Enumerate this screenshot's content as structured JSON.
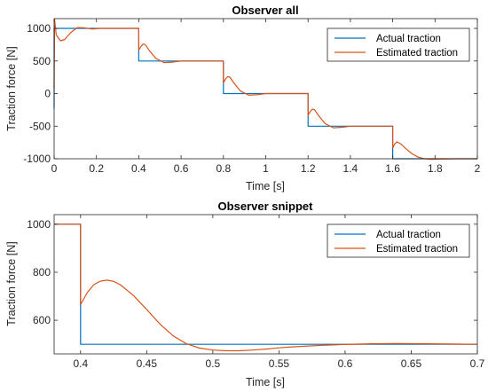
{
  "chart_data": [
    {
      "type": "line",
      "title": "Observer all",
      "xlabel": "Time [s]",
      "ylabel": "Traction force [N]",
      "xlim": [
        0,
        2
      ],
      "ylim": [
        -1000,
        1150
      ],
      "xticks": [
        "0",
        "0.2",
        "0.4",
        "0.6",
        "0.8",
        "1",
        "1.2",
        "1.4",
        "1.6",
        "1.8",
        "2"
      ],
      "yticks": [
        "-1000",
        "-500",
        "0",
        "500",
        "1000"
      ],
      "grid": false,
      "legend_position": "top-right",
      "series": [
        {
          "name": "Actual traction",
          "color": "#0072BD",
          "x": [
            0,
            0,
            0.4,
            0.4,
            0.8,
            0.8,
            1.2,
            1.2,
            1.6,
            1.6,
            2.0
          ],
          "y": [
            -230,
            1000,
            1000,
            500,
            500,
            0,
            0,
            -500,
            -500,
            -1000,
            -1000
          ]
        },
        {
          "name": "Estimated traction",
          "color": "#D95319",
          "x": [
            0,
            0.002,
            0.01,
            0.03,
            0.05,
            0.08,
            0.11,
            0.14,
            0.18,
            0.22,
            0.3,
            0.4,
            0.4,
            0.41,
            0.42,
            0.43,
            0.45,
            0.48,
            0.52,
            0.56,
            0.6,
            0.7,
            0.8,
            0.8,
            0.81,
            0.82,
            0.83,
            0.85,
            0.88,
            0.92,
            0.96,
            1.0,
            1.1,
            1.2,
            1.2,
            1.21,
            1.22,
            1.23,
            1.25,
            1.28,
            1.32,
            1.36,
            1.4,
            1.5,
            1.6,
            1.6,
            1.61,
            1.62,
            1.64,
            1.66,
            1.69,
            1.72,
            1.75,
            1.78,
            1.82,
            1.9,
            2.0
          ],
          "y": [
            80,
            1140,
            900,
            810,
            830,
            940,
            1012,
            1010,
            990,
            1000,
            1000,
            1000,
            665,
            722,
            760,
            752,
            662,
            540,
            475,
            483,
            500,
            500,
            500,
            165,
            224,
            260,
            252,
            162,
            40,
            -25,
            -17,
            0,
            0,
            0,
            -335,
            -278,
            -240,
            -248,
            -338,
            -460,
            -525,
            -517,
            -500,
            -500,
            -500,
            -835,
            -770,
            -740,
            -775,
            -840,
            -920,
            -975,
            -1000,
            -1008,
            -1005,
            -1000,
            -1000
          ]
        }
      ]
    },
    {
      "type": "line",
      "title": "Observer snippet",
      "xlabel": "Time [s]",
      "ylabel": "Traction force [N]",
      "xlim": [
        0.38,
        0.7
      ],
      "ylim": [
        460,
        1040
      ],
      "xticks": [
        "0.4",
        "0.45",
        "0.5",
        "0.55",
        "0.6",
        "0.65",
        "0.7"
      ],
      "yticks": [
        "600",
        "800",
        "1000"
      ],
      "grid": false,
      "legend_position": "top-right",
      "series": [
        {
          "name": "Actual traction",
          "color": "#0072BD",
          "x": [
            0.38,
            0.4,
            0.4,
            0.7
          ],
          "y": [
            1000,
            1000,
            500,
            500
          ]
        },
        {
          "name": "Estimated traction",
          "color": "#D95319",
          "x": [
            0.38,
            0.4,
            0.4,
            0.405,
            0.41,
            0.415,
            0.42,
            0.425,
            0.43,
            0.44,
            0.45,
            0.46,
            0.47,
            0.48,
            0.49,
            0.5,
            0.51,
            0.52,
            0.53,
            0.54,
            0.55,
            0.56,
            0.58,
            0.6,
            0.62,
            0.64,
            0.66,
            0.68,
            0.7
          ],
          "y": [
            1000,
            1000,
            665,
            715,
            748,
            763,
            767,
            762,
            748,
            703,
            645,
            584,
            535,
            502,
            484,
            476,
            473,
            473,
            476,
            480,
            485,
            489,
            495,
            499,
            502,
            503,
            502,
            501,
            500
          ]
        }
      ]
    }
  ]
}
